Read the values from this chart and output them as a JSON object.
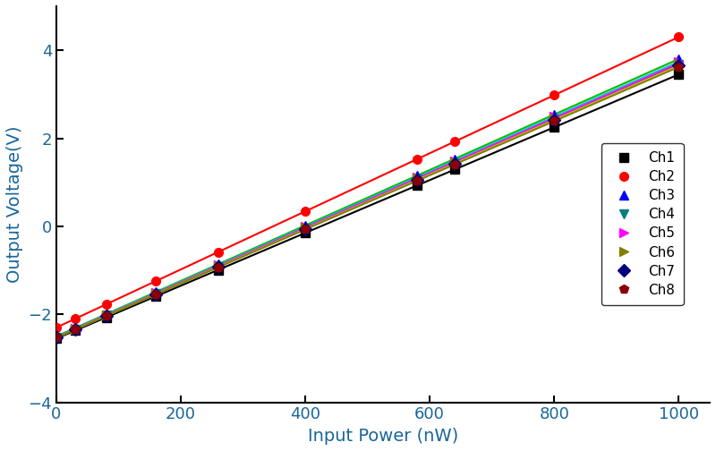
{
  "xlabel": "Input Power (nW)",
  "ylabel": "Output Voltage(V)",
  "xlim": [
    0,
    1050
  ],
  "ylim": [
    -4,
    5
  ],
  "xticks": [
    0,
    200,
    400,
    600,
    800,
    1000
  ],
  "yticks": [
    -4,
    -2,
    0,
    2,
    4
  ],
  "channels": [
    {
      "label": "Ch1",
      "line_color": "#000000",
      "marker": "s",
      "marker_color": "#000000",
      "slope": 0.006,
      "intercept": -2.55
    },
    {
      "label": "Ch2",
      "line_color": "#FF0000",
      "marker": "o",
      "marker_color": "#FF0000",
      "slope": 0.0066,
      "intercept": -2.3
    },
    {
      "label": "Ch3",
      "line_color": "#00BB00",
      "marker": "^",
      "marker_color": "#0000FF",
      "slope": 0.0063,
      "intercept": -2.5
    },
    {
      "label": "Ch4",
      "line_color": "#0000CC",
      "marker": "v",
      "marker_color": "#008080",
      "slope": 0.0062,
      "intercept": -2.52
    },
    {
      "label": "Ch5",
      "line_color": "#00CCCC",
      "marker": ">",
      "marker_color": "#FF00FF",
      "slope": 0.00625,
      "intercept": -2.51
    },
    {
      "label": "Ch6",
      "line_color": "#FF00FF",
      "marker": ">",
      "marker_color": "#808000",
      "slope": 0.00622,
      "intercept": -2.52
    },
    {
      "label": "Ch7",
      "line_color": "#CCCC00",
      "marker": "D",
      "marker_color": "#000080",
      "slope": 0.00618,
      "intercept": -2.53
    },
    {
      "label": "Ch8",
      "line_color": "#808000",
      "marker": "p",
      "marker_color": "#8B0000",
      "slope": 0.00615,
      "intercept": -2.53
    }
  ],
  "x_dense": [
    0,
    2,
    4,
    6,
    8,
    10,
    12,
    14,
    16,
    18,
    20,
    22,
    24,
    26,
    28,
    30,
    35,
    40,
    45,
    50,
    55,
    60,
    65,
    70,
    75,
    80,
    85,
    90,
    95,
    100,
    110,
    120,
    130,
    140,
    150,
    160,
    170,
    180,
    190,
    200,
    220,
    240,
    260,
    280,
    300,
    320,
    340,
    360,
    380,
    400,
    430,
    460,
    490,
    520,
    550,
    580,
    610,
    640,
    680,
    720,
    760,
    800,
    840,
    880,
    920,
    960,
    1000
  ],
  "marker_x": [
    0,
    30,
    80,
    160,
    260,
    400,
    580,
    640,
    800,
    1000
  ],
  "legend_fontsize": 11,
  "axis_label_fontsize": 14,
  "tick_fontsize": 13,
  "figsize": [
    8.0,
    5.04
  ],
  "dpi": 100
}
